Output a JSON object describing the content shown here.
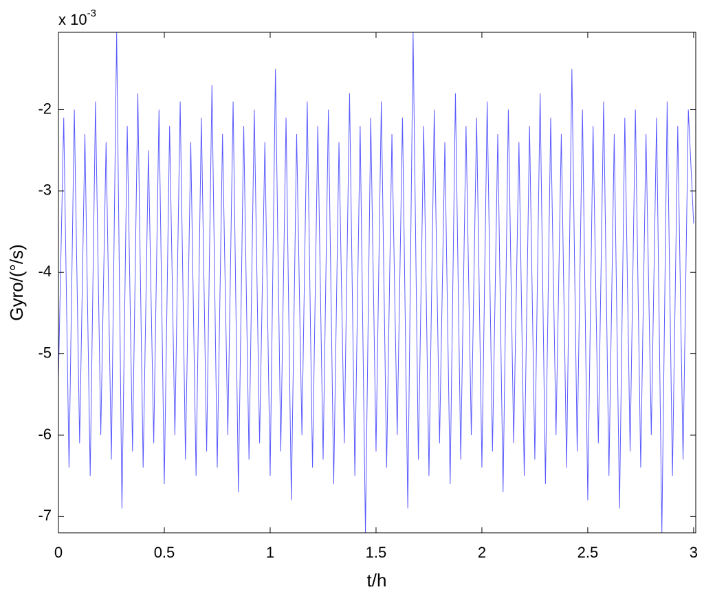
{
  "chart_data": {
    "type": "line",
    "x_label": "t/h",
    "y_label": "Gyro/(°/s)",
    "y_multiplier_base": "x 10",
    "y_multiplier_exponent": "-3",
    "xlim": [
      0,
      3.01
    ],
    "ylim": [
      -7.2,
      -1.05
    ],
    "xticks": [
      0,
      0.5,
      1,
      1.5,
      2,
      2.5,
      3
    ],
    "yticks": [
      -7,
      -6,
      -5,
      -4,
      -3,
      -2
    ],
    "grid": false,
    "x": [
      0,
      0.025,
      0.05,
      0.075,
      0.1,
      0.125,
      0.15,
      0.175,
      0.2,
      0.225,
      0.25,
      0.275,
      0.3,
      0.325,
      0.35,
      0.375,
      0.4,
      0.425,
      0.45,
      0.475,
      0.5,
      0.525,
      0.55,
      0.575,
      0.6,
      0.625,
      0.65,
      0.675,
      0.7,
      0.725,
      0.75,
      0.775,
      0.8,
      0.825,
      0.85,
      0.875,
      0.9,
      0.925,
      0.95,
      0.975,
      1,
      1.025,
      1.05,
      1.075,
      1.1,
      1.125,
      1.15,
      1.175,
      1.2,
      1.225,
      1.25,
      1.275,
      1.3,
      1.325,
      1.35,
      1.375,
      1.4,
      1.425,
      1.45,
      1.475,
      1.5,
      1.525,
      1.55,
      1.575,
      1.6,
      1.625,
      1.65,
      1.675,
      1.7,
      1.725,
      1.75,
      1.775,
      1.8,
      1.825,
      1.85,
      1.875,
      1.9,
      1.925,
      1.95,
      1.975,
      2,
      2.025,
      2.05,
      2.075,
      2.1,
      2.125,
      2.15,
      2.175,
      2.2,
      2.225,
      2.25,
      2.275,
      2.3,
      2.325,
      2.35,
      2.375,
      2.4,
      2.425,
      2.45,
      2.475,
      2.5,
      2.525,
      2.55,
      2.575,
      2.6,
      2.625,
      2.65,
      2.675,
      2.7,
      2.725,
      2.75,
      2.775,
      2.8,
      2.825,
      2.85,
      2.875,
      2.9,
      2.925,
      2.95,
      2.975,
      3
    ],
    "series": [
      {
        "color": "#5a5aff",
        "values": [
          -5.3,
          -2.1,
          -6.4,
          -2.0,
          -6.1,
          -2.3,
          -6.5,
          -1.9,
          -6.0,
          -2.4,
          -6.3,
          -1.05,
          -6.9,
          -2.2,
          -6.2,
          -1.8,
          -6.4,
          -2.5,
          -6.1,
          -2.0,
          -6.6,
          -2.2,
          -6.0,
          -1.9,
          -6.3,
          -2.4,
          -6.5,
          -2.1,
          -6.2,
          -1.7,
          -6.4,
          -2.3,
          -6.0,
          -1.9,
          -6.7,
          -2.2,
          -6.3,
          -2.0,
          -6.1,
          -2.4,
          -6.5,
          -1.5,
          -6.2,
          -2.1,
          -6.8,
          -2.3,
          -6.0,
          -1.9,
          -6.4,
          -2.2,
          -6.3,
          -2.0,
          -6.6,
          -2.4,
          -6.1,
          -1.8,
          -6.5,
          -2.2,
          -7.2,
          -2.1,
          -6.2,
          -1.9,
          -6.4,
          -2.3,
          -6.0,
          -2.1,
          -6.9,
          -1.05,
          -6.3,
          -2.2,
          -6.5,
          -2.0,
          -6.1,
          -2.4,
          -6.6,
          -1.8,
          -6.3,
          -2.2,
          -6.0,
          -2.1,
          -6.4,
          -1.9,
          -6.2,
          -2.3,
          -6.7,
          -2.0,
          -6.1,
          -2.4,
          -6.5,
          -2.2,
          -6.3,
          -1.8,
          -6.6,
          -2.1,
          -6.0,
          -2.3,
          -6.4,
          -1.5,
          -6.2,
          -2.0,
          -6.8,
          -2.2,
          -6.1,
          -1.9,
          -6.5,
          -2.3,
          -6.9,
          -2.1,
          -6.2,
          -2.0,
          -6.4,
          -2.3,
          -6.0,
          -2.1,
          -7.2,
          -1.9,
          -6.5,
          -2.2,
          -6.3,
          -2.0,
          -3.4
        ]
      }
    ]
  }
}
